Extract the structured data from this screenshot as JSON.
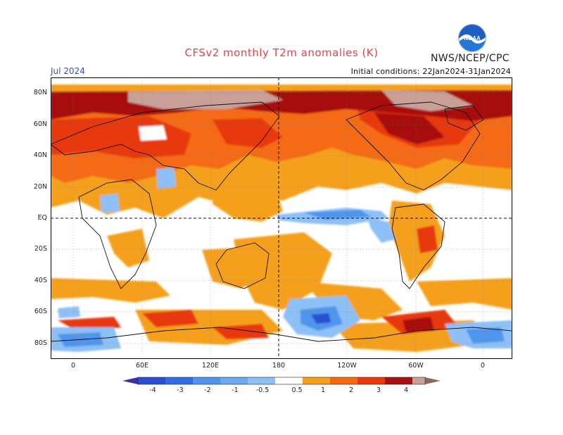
{
  "header": {
    "title": "CFSv2 monthly T2m anomalies (K)",
    "agency": "NWS/NCEP/CPC",
    "logo_text": "NOAA",
    "valid_month": "Jul 2024",
    "initial_conditions": "Initial conditions: 22Jan2024-31Jan2024"
  },
  "map": {
    "lat_labels": [
      "80N",
      "60N",
      "40N",
      "20N",
      "EQ",
      "20S",
      "40S",
      "60S",
      "80S"
    ],
    "lon_labels": [
      "0",
      "60E",
      "120E",
      "180",
      "120W",
      "60W",
      "0"
    ]
  },
  "colorbar": {
    "labels": [
      "-4",
      "-3",
      "-2",
      "-1",
      "-0.5",
      "0.5",
      "1",
      "2",
      "3",
      "4"
    ],
    "colors": [
      "#3c2ea8",
      "#2a4fd0",
      "#2f6fe0",
      "#4f95ec",
      "#8cc0f6",
      "#ffffff",
      "#f5a01a",
      "#f46a12",
      "#e8380c",
      "#a80f0f",
      "#c8a098",
      "#8a6a60"
    ]
  }
}
